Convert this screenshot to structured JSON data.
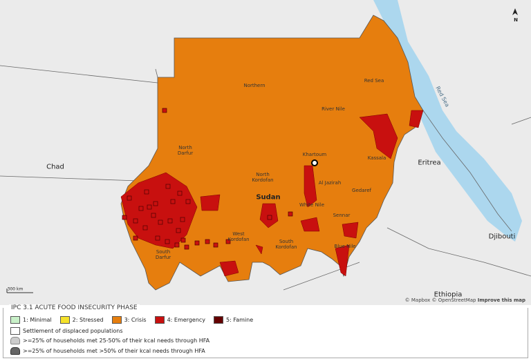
{
  "map": {
    "regions": [
      "Northern",
      "Red Sea",
      "River Nile",
      "Khartoum",
      "Kassala",
      "North Darfur",
      "North Kordofan",
      "Al Jazirah",
      "Gedaref",
      "White Nile",
      "Sennar",
      "West Kordofan",
      "South Kordofan",
      "Blue Nile",
      "South Darfur"
    ],
    "country": "Sudan",
    "neighbors": [
      "Chad",
      "Eritrea",
      "Djibouti",
      "Ethiopia"
    ],
    "sea": "Red Sea",
    "north": "N",
    "scale": "300 km",
    "attribution": "© Mapbox © OpenStreetMap",
    "improve": "Improve this map"
  },
  "legend": {
    "title": "IPC 3.1 ACUTE FOOD INSECURITY PHASE",
    "phases": [
      {
        "label": "1: Minimal",
        "color": "#c8f0c8"
      },
      {
        "label": "2: Stressed",
        "color": "#f5e22a"
      },
      {
        "label": "3: Crisis",
        "color": "#e67e0e"
      },
      {
        "label": "4: Emergency",
        "color": "#c8100f"
      },
      {
        "label": "5: Famine",
        "color": "#640000"
      }
    ],
    "settlement": "Settlement of displaced populations",
    "hfa": [
      ">=25% of households met 25-50% of their kcal needs through HFA",
      ">=25% of households met >50% of their kcal needs through HFA"
    ]
  }
}
